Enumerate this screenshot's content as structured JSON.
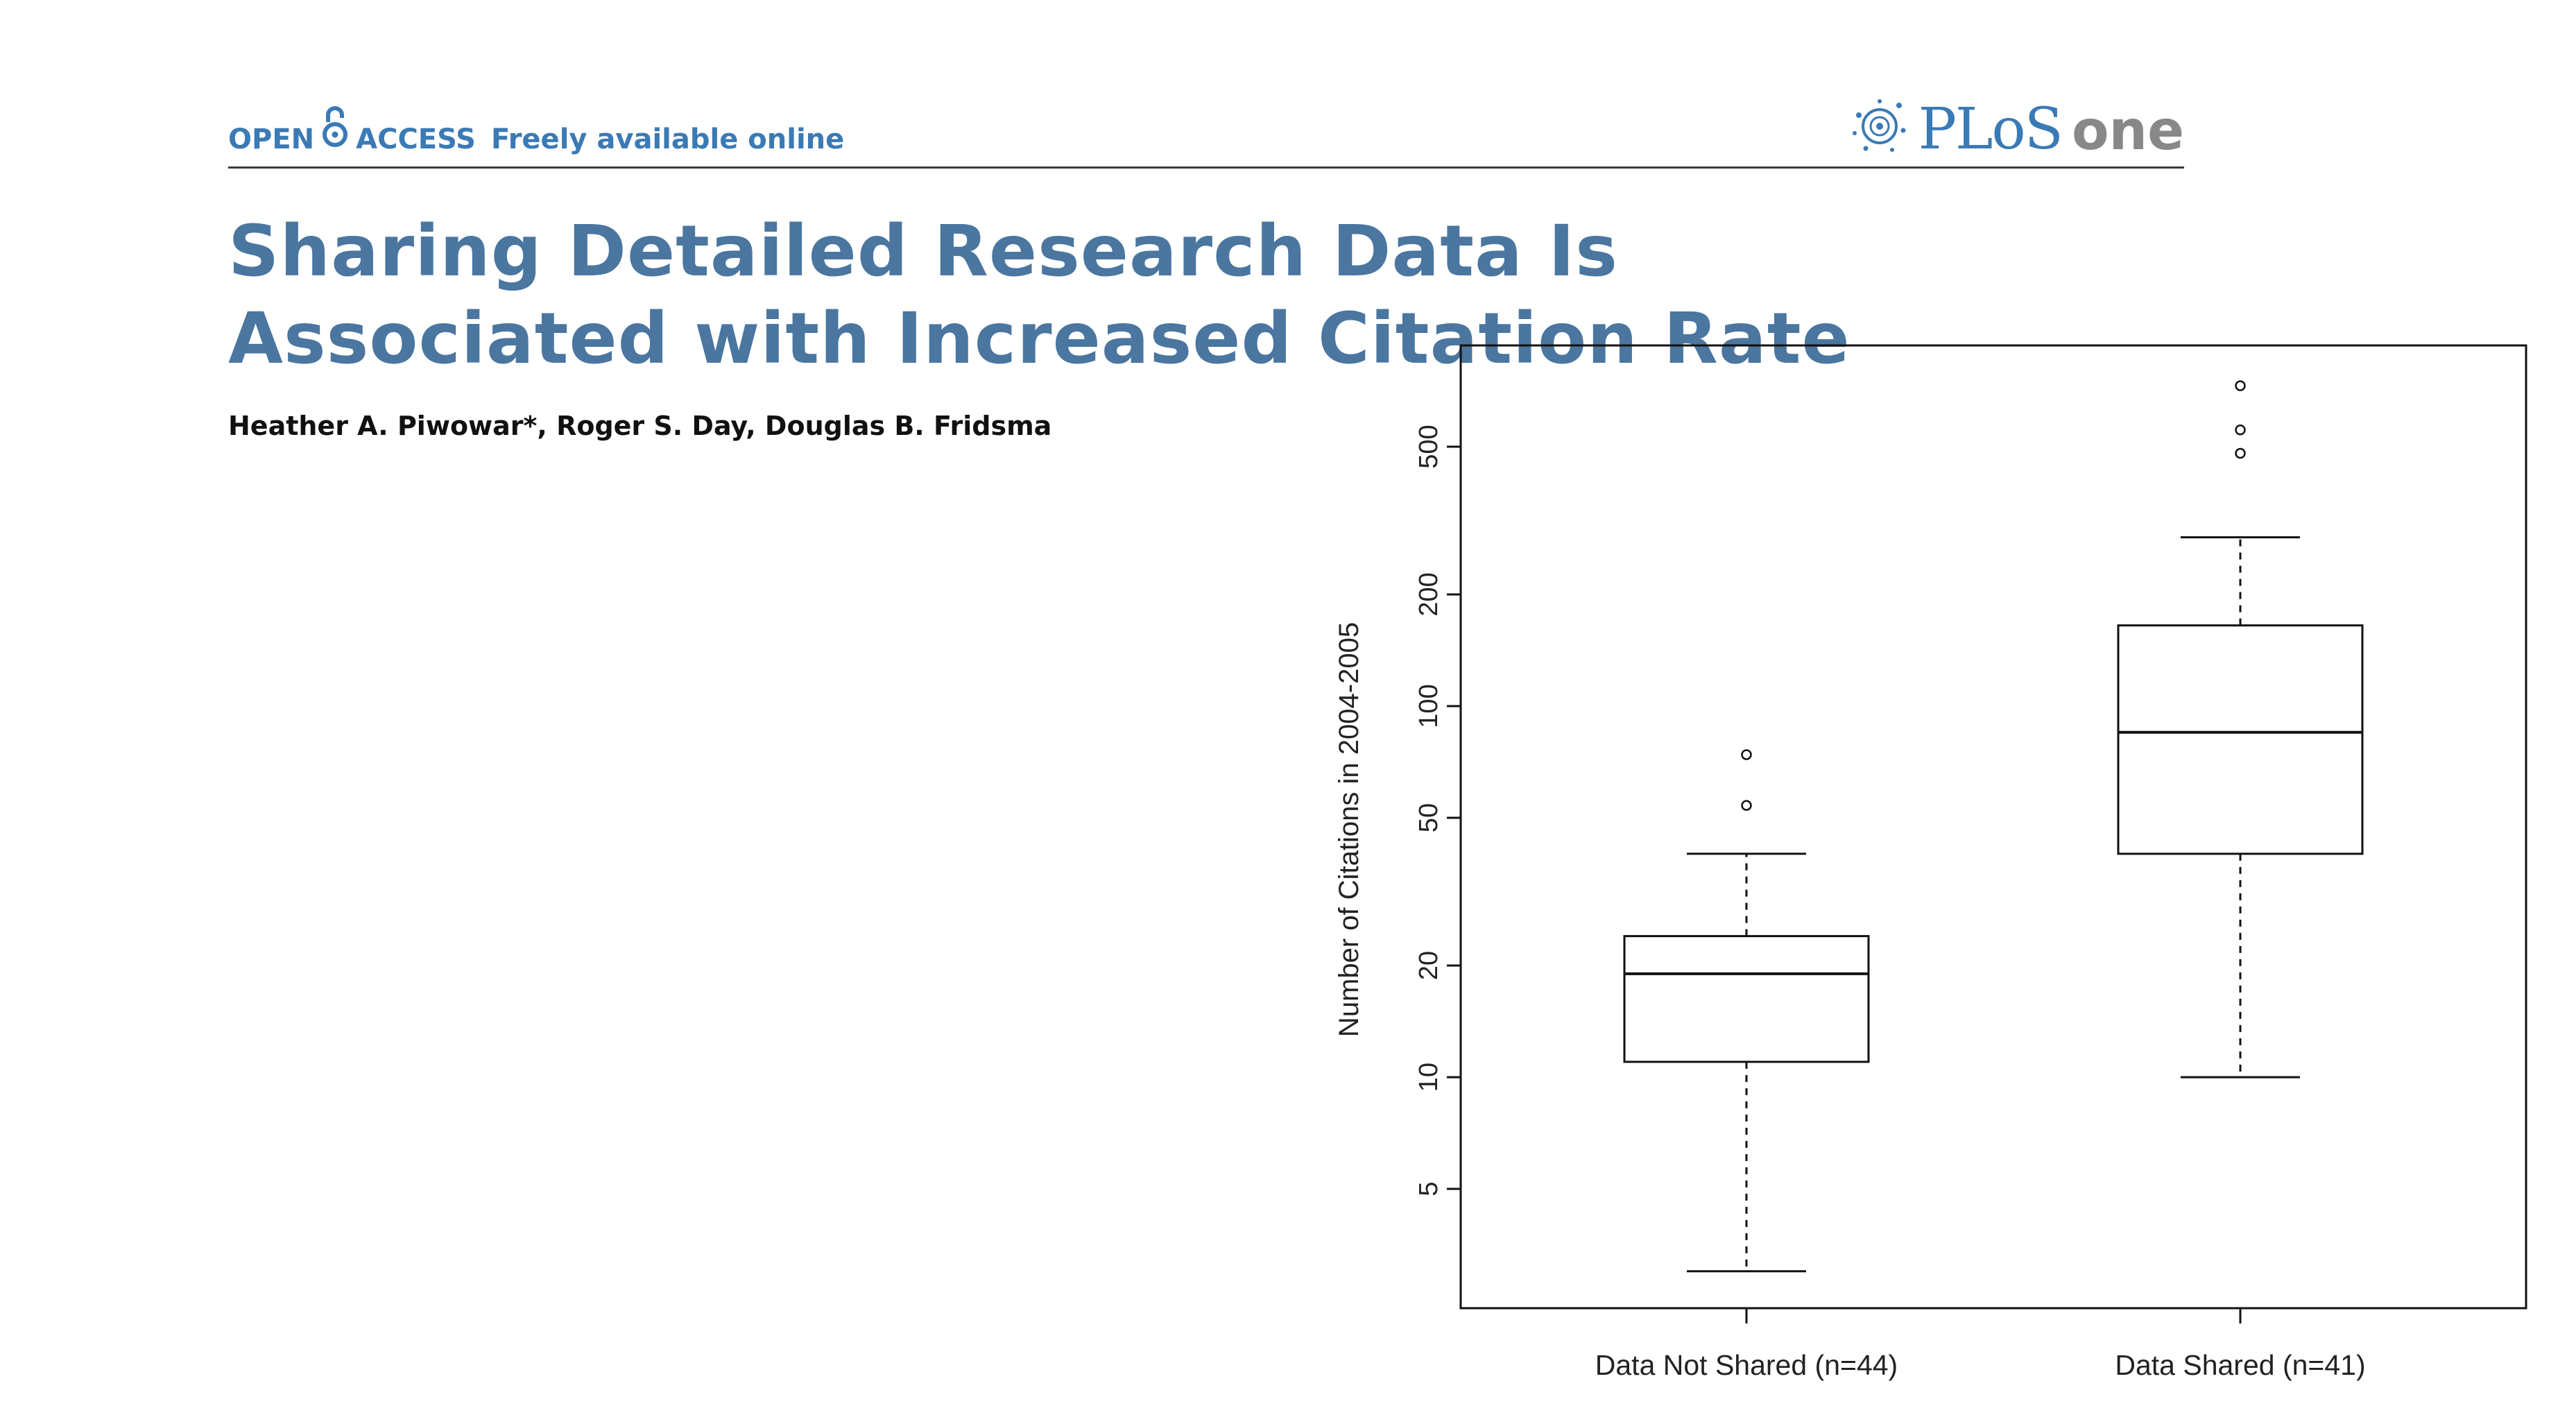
{
  "header": {
    "open_word": "OPEN",
    "access_word": "ACCESS",
    "tagline": "Freely available online",
    "journal_prefix": "PLoS",
    "journal_suffix": "one"
  },
  "article": {
    "title": "Sharing Detailed Research Data Is Associated with Increased Citation Rate",
    "authors": "Heather A. Piwowar*, Roger S. Day, Douglas B. Fridsma"
  },
  "colors": {
    "title_blue": "#4a76a0",
    "link_blue": "#3a7ab5",
    "logo_grey": "#888888"
  },
  "chart_data": {
    "type": "boxplot",
    "ylabel": "Number of Citations in 2004-2005",
    "xlabel": "",
    "y_scale": "log",
    "ylim": [
      2.6,
      780
    ],
    "y_ticks": [
      5,
      10,
      20,
      50,
      100,
      200,
      500
    ],
    "grid": false,
    "categories": [
      "Data Not Shared (n=44)",
      "Data Shared (n=41)"
    ],
    "boxes": [
      {
        "whisker_low": 3,
        "q1": 11,
        "median": 19,
        "q3": 24,
        "whisker_high": 40,
        "outliers": [
          54,
          74
        ]
      },
      {
        "whisker_low": 10,
        "q1": 40,
        "median": 85,
        "q3": 165,
        "whisker_high": 285,
        "outliers": [
          480,
          555,
          730
        ]
      }
    ]
  }
}
